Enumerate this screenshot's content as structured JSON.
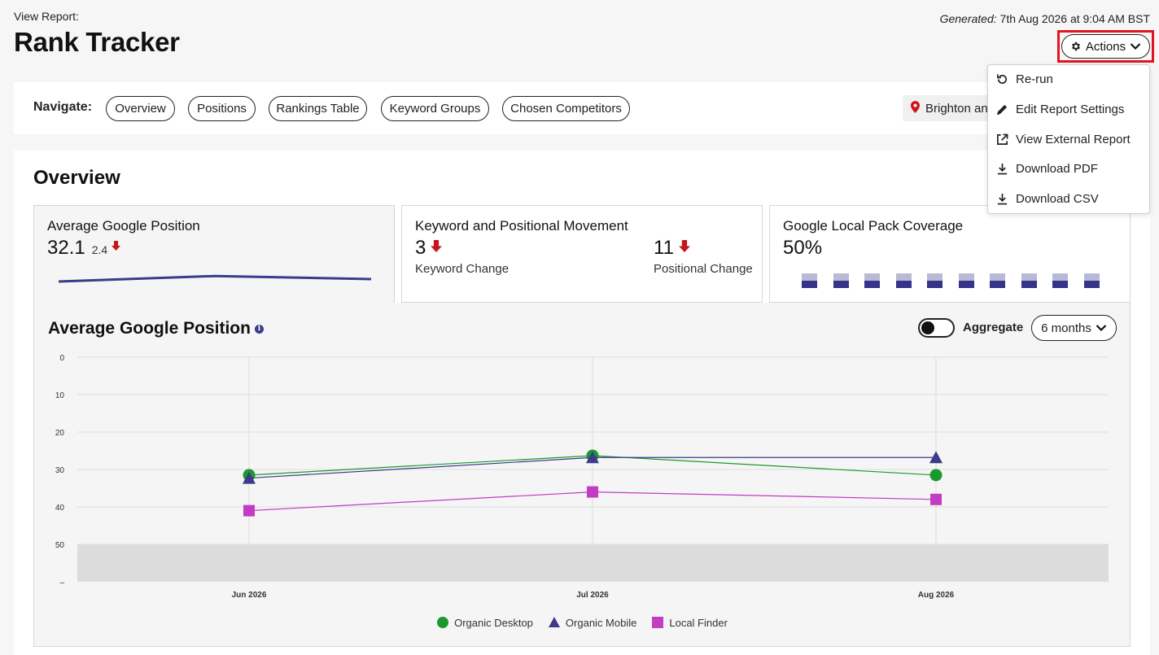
{
  "header": {
    "view_label": "View Report:",
    "title": "Rank Tracker",
    "generated_label": "Generated:",
    "generated_value": "7th Aug 2026 at 9:04 AM BST",
    "actions_label": "Actions"
  },
  "actions_menu": {
    "items": [
      {
        "label": "Re-run",
        "icon": "rerun-icon"
      },
      {
        "label": "Edit Report Settings",
        "icon": "pencil-icon"
      },
      {
        "label": "View External Report",
        "icon": "external-link-icon"
      },
      {
        "label": "Download PDF",
        "icon": "download-icon"
      },
      {
        "label": "Download CSV",
        "icon": "download-icon"
      }
    ]
  },
  "navigate": {
    "label": "Navigate:",
    "pills": [
      "Overview",
      "Positions",
      "Rankings Table",
      "Keyword Groups",
      "Chosen Competitors"
    ],
    "location": "Brighton and Hove"
  },
  "overview": {
    "title": "Overview",
    "avg_position": {
      "title": "Average Google Position",
      "value": "32.1",
      "change": "2.4",
      "sparkline": [
        32.8,
        31.2,
        32.1
      ]
    },
    "movement": {
      "title": "Keyword and Positional Movement",
      "keyword_value": "3",
      "keyword_label": "Keyword Change",
      "positional_value": "11",
      "positional_label": "Positional Change"
    },
    "local_pack": {
      "title": "Google Local Pack Coverage",
      "value": "50%",
      "fill_fraction": 0.5,
      "bar_count": 10
    },
    "chart_panel": {
      "title": "Average Google Position",
      "aggregate_label": "Aggregate",
      "range_label": "6 months"
    }
  },
  "colors": {
    "organic_desktop": "#1a9a2e",
    "organic_mobile": "#3b3b8a",
    "local_finder": "#c23cc4",
    "highlight": "#e0151e",
    "arrow_down": "#c4161c"
  },
  "chart_data": {
    "type": "line",
    "categories": [
      "Jun 2026",
      "Jul 2026",
      "Aug 2026"
    ],
    "y_ticks": [
      "0",
      "10",
      "20",
      "30",
      "40",
      "50",
      "–"
    ],
    "ylim": [
      0,
      60
    ],
    "inverted_y": true,
    "grid": true,
    "legend_position": "bottom",
    "series": [
      {
        "name": "Organic Desktop",
        "marker": "circle",
        "values": [
          31.5,
          26.3,
          31.5
        ]
      },
      {
        "name": "Organic Mobile",
        "marker": "triangle",
        "values": [
          32.3,
          26.8,
          26.8
        ]
      },
      {
        "name": "Local Finder",
        "marker": "square",
        "values": [
          41.0,
          36.0,
          38.0
        ]
      }
    ]
  }
}
